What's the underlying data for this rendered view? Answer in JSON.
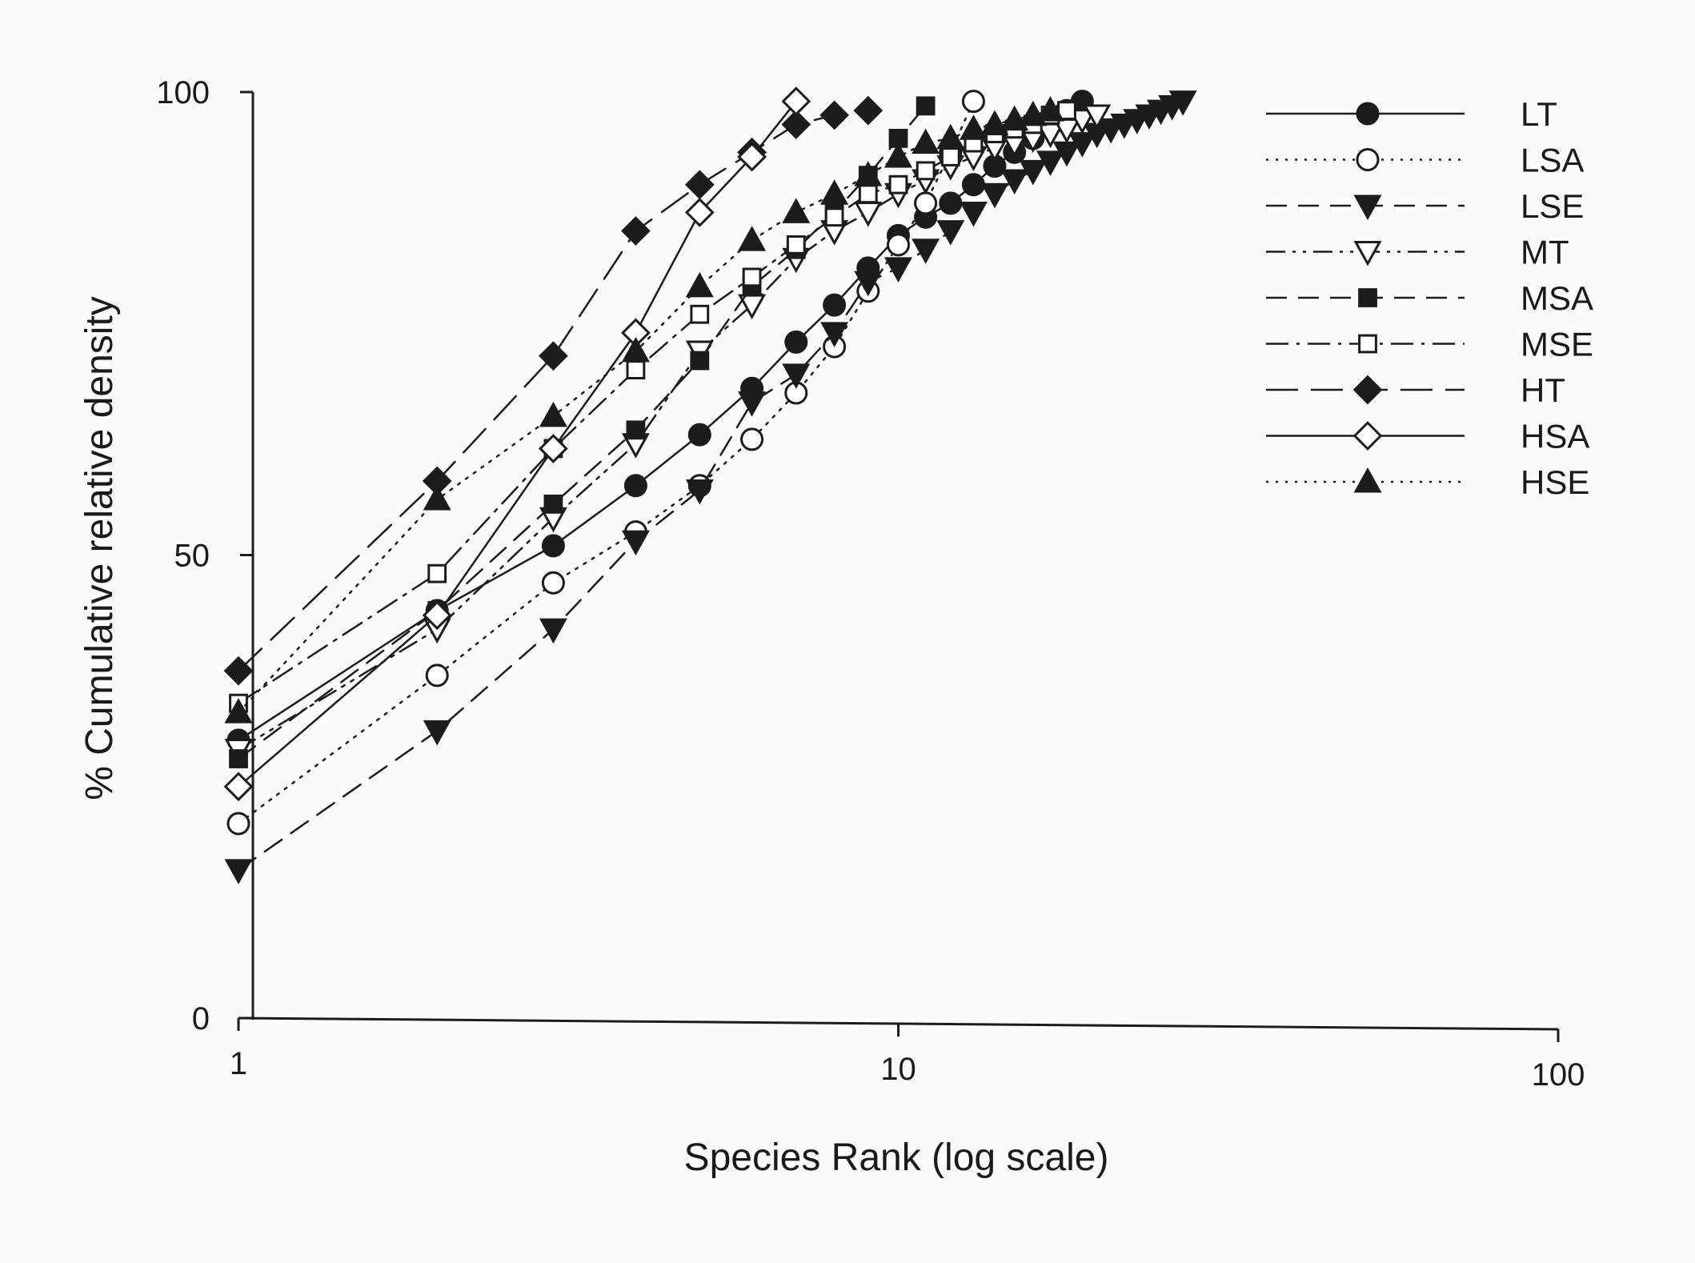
{
  "chart_data": {
    "type": "line",
    "title": "",
    "xlabel": "Species Rank (log scale)",
    "ylabel": "% Cumulative relative density",
    "xscale": "log",
    "xlim": [
      1,
      100
    ],
    "ylim": [
      0,
      100
    ],
    "x_ticks": [
      1,
      10,
      100
    ],
    "x_tick_labels": [
      "1",
      "10",
      "100"
    ],
    "y_ticks": [
      0,
      50,
      100
    ],
    "y_tick_labels": [
      "0",
      "50",
      "100"
    ],
    "grid": false,
    "legend_position": "top-right",
    "series": [
      {
        "name": "LT",
        "line_style": "solid",
        "marker": "circle",
        "filled": true,
        "x": [
          1,
          2,
          3,
          4,
          5,
          6,
          7,
          8,
          9,
          10,
          11,
          12,
          13,
          14,
          15,
          16,
          17,
          18,
          19
        ],
        "y": [
          30,
          44,
          51,
          57.5,
          63,
          68,
          73,
          77,
          81,
          84.5,
          86.5,
          88,
          90,
          92,
          93.5,
          95,
          96.5,
          98,
          99
        ]
      },
      {
        "name": "LSA",
        "line_style": "dotted",
        "marker": "circle",
        "filled": false,
        "x": [
          1,
          2,
          3,
          4,
          5,
          6,
          7,
          8,
          9,
          10,
          11,
          12,
          13
        ],
        "y": [
          21,
          37,
          47,
          52.5,
          57.5,
          62.5,
          67.5,
          72.5,
          78.5,
          83.5,
          88,
          93.5,
          99
        ]
      },
      {
        "name": "LSE",
        "line_style": "dashed",
        "marker": "triangle-down",
        "filled": true,
        "x": [
          1,
          2,
          3,
          4,
          5,
          6,
          7,
          8,
          9,
          10,
          11,
          12,
          13,
          14,
          15,
          16,
          17,
          18,
          19,
          20,
          21,
          22,
          23,
          24,
          25,
          26,
          27
        ],
        "y": [
          16,
          31,
          42,
          51.5,
          57,
          66.5,
          69.5,
          74,
          79.5,
          81,
          83,
          85,
          87,
          89,
          90.5,
          91.5,
          92.5,
          93.5,
          94.5,
          95.5,
          96,
          96.5,
          97,
          97.5,
          98,
          98.5,
          99
        ]
      },
      {
        "name": "MT",
        "line_style": "dash-dot-dot",
        "marker": "triangle-down",
        "filled": false,
        "x": [
          1,
          2,
          3,
          4,
          5,
          6,
          7,
          8,
          9,
          10,
          11,
          12,
          13,
          14,
          15,
          16,
          17,
          18,
          19,
          20
        ],
        "y": [
          29,
          42,
          54,
          62,
          72,
          77,
          82,
          85,
          87,
          89,
          90.5,
          92,
          93,
          94,
          94.5,
          95,
          95.5,
          96,
          97,
          97.5
        ]
      },
      {
        "name": "MSA",
        "line_style": "dashed",
        "marker": "square",
        "filled": true,
        "x": [
          1,
          2,
          3,
          4,
          5,
          6,
          7,
          8,
          9,
          10,
          11
        ],
        "y": [
          28,
          44,
          55.5,
          63.5,
          71,
          79,
          83,
          87,
          91,
          95,
          98.5
        ]
      },
      {
        "name": "MSE",
        "line_style": "dash-dot",
        "marker": "square",
        "filled": false,
        "x": [
          1,
          2,
          3,
          4,
          5,
          6,
          7,
          8,
          9,
          10,
          11,
          12,
          13,
          14,
          15,
          16,
          17,
          18
        ],
        "y": [
          34,
          48,
          61.5,
          70,
          76,
          80,
          83.5,
          86.5,
          89,
          90,
          91.5,
          93,
          94.5,
          95.5,
          96,
          96.5,
          97.5,
          98
        ]
      },
      {
        "name": "HT",
        "line_style": "long-dash",
        "marker": "diamond",
        "filled": true,
        "x": [
          1,
          2,
          3,
          4,
          5,
          6,
          7,
          8,
          9
        ],
        "y": [
          37.5,
          58,
          71.5,
          85,
          90,
          93.5,
          96.5,
          97.5,
          98
        ]
      },
      {
        "name": "HSA",
        "line_style": "solid",
        "marker": "diamond",
        "filled": false,
        "x": [
          1,
          2,
          3,
          4,
          5,
          6,
          7
        ],
        "y": [
          25,
          43.5,
          61.5,
          74,
          87,
          93,
          99
        ]
      },
      {
        "name": "HSE",
        "line_style": "dotted",
        "marker": "triangle-up",
        "filled": true,
        "x": [
          1,
          2,
          3,
          4,
          5,
          6,
          7,
          8,
          9,
          10,
          11,
          12,
          13,
          14,
          15,
          16,
          17
        ],
        "y": [
          33,
          56,
          65,
          72,
          79,
          84,
          87,
          89,
          91,
          93,
          94.5,
          95,
          96,
          96.5,
          97,
          97.5,
          98
        ]
      }
    ]
  }
}
